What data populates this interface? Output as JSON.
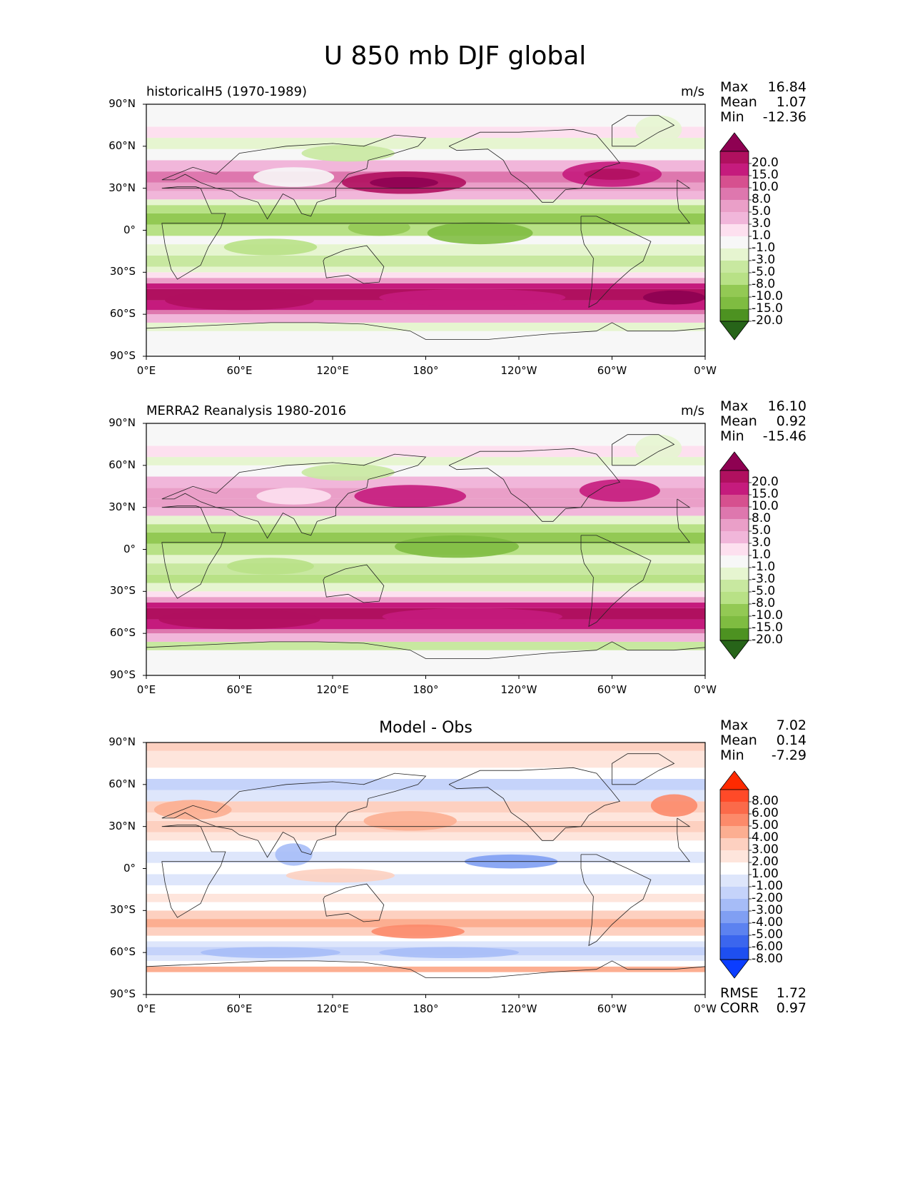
{
  "title": "U 850 mb DJF global",
  "chart_data": [
    {
      "type": "heatmap",
      "panel": "model",
      "title": "historicalH5 (1970-1989)",
      "units": "m/s",
      "stats": {
        "max_label": "Max",
        "max": "16.84",
        "mean_label": "Mean",
        "mean": "1.07",
        "min_label": "Min",
        "min": "-12.36"
      },
      "x_ticks": [
        "0°E",
        "60°E",
        "120°E",
        "180°",
        "120°W",
        "60°W",
        "0°W"
      ],
      "y_ticks": [
        "90°N",
        "60°N",
        "30°N",
        "0°",
        "30°S",
        "60°S",
        "90°S"
      ],
      "xlim": [
        0,
        360
      ],
      "ylim": [
        -90,
        90
      ],
      "colorbar": {
        "levels": [
          "20.0",
          "15.0",
          "10.0",
          "8.0",
          "5.0",
          "3.0",
          "1.0",
          "-1.0",
          "-3.0",
          "-5.0",
          "-8.0",
          "-10.0",
          "-15.0",
          "-20.0"
        ],
        "colors": [
          "#8e0152",
          "#b0105f",
          "#c51b7d",
          "#d6508f",
          "#de77ae",
          "#ea9fc8",
          "#f1b6da",
          "#fde0ef",
          "#f7f7f7",
          "#e6f5d0",
          "#c8e8a0",
          "#b8e186",
          "#93c954",
          "#7fbc41",
          "#4d9221",
          "#276419"
        ]
      }
    },
    {
      "type": "heatmap",
      "panel": "obs",
      "title": "MERRA2 Reanalysis 1980-2016",
      "units": "m/s",
      "stats": {
        "max_label": "Max",
        "max": "16.10",
        "mean_label": "Mean",
        "mean": "0.92",
        "min_label": "Min",
        "min": "-15.46"
      },
      "x_ticks": [
        "0°E",
        "60°E",
        "120°E",
        "180°",
        "120°W",
        "60°W",
        "0°W"
      ],
      "y_ticks": [
        "90°N",
        "60°N",
        "30°N",
        "0°",
        "30°S",
        "60°S",
        "90°S"
      ],
      "xlim": [
        0,
        360
      ],
      "ylim": [
        -90,
        90
      ],
      "colorbar": {
        "levels": [
          "20.0",
          "15.0",
          "10.0",
          "8.0",
          "5.0",
          "3.0",
          "1.0",
          "-1.0",
          "-3.0",
          "-5.0",
          "-8.0",
          "-10.0",
          "-15.0",
          "-20.0"
        ],
        "colors": [
          "#8e0152",
          "#b0105f",
          "#c51b7d",
          "#d6508f",
          "#de77ae",
          "#ea9fc8",
          "#f1b6da",
          "#fde0ef",
          "#f7f7f7",
          "#e6f5d0",
          "#c8e8a0",
          "#b8e186",
          "#93c954",
          "#7fbc41",
          "#4d9221",
          "#276419"
        ]
      }
    },
    {
      "type": "heatmap",
      "panel": "diff",
      "title": "Model - Obs",
      "stats": {
        "max_label": "Max",
        "max": "7.02",
        "mean_label": "Mean",
        "mean": "0.14",
        "min_label": "Min",
        "min": "-7.29"
      },
      "metrics": {
        "rmse_label": "RMSE",
        "rmse": "1.72",
        "corr_label": "CORR",
        "corr": "0.97"
      },
      "x_ticks": [
        "0°E",
        "60°E",
        "120°E",
        "180°",
        "120°W",
        "60°W",
        "0°W"
      ],
      "y_ticks": [
        "90°N",
        "60°N",
        "30°N",
        "0°",
        "30°S",
        "60°S",
        "90°S"
      ],
      "xlim": [
        0,
        360
      ],
      "ylim": [
        -90,
        90
      ],
      "colorbar": {
        "levels": [
          "8.00",
          "6.00",
          "5.00",
          "4.00",
          "3.00",
          "2.00",
          "1.00",
          "-1.00",
          "-2.00",
          "-3.00",
          "-4.00",
          "-5.00",
          "-6.00",
          "-8.00"
        ],
        "colors": [
          "#ff2a00",
          "#ff4a28",
          "#fb6a4a",
          "#fc8a6a",
          "#fcae91",
          "#fdd0c0",
          "#fee5dc",
          "#ffffff",
          "#dee6fb",
          "#c5d3fa",
          "#a6bcf7",
          "#809ff3",
          "#5c82f0",
          "#3b66ee",
          "#1e4ff0",
          "#0b3dff"
        ]
      }
    }
  ]
}
